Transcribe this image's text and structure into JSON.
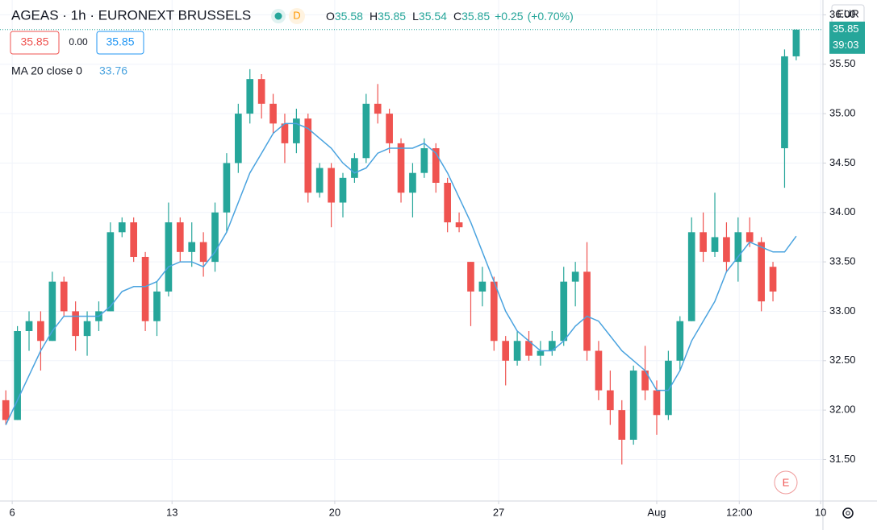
{
  "chart_data": {
    "type": "candlestick",
    "title": "AGEAS · 1h · EURONEXT BRUSSELS",
    "interval_badge": "D",
    "ohlc_labels": [
      "O",
      "H",
      "L",
      "C"
    ],
    "change": "+0.25",
    "change_pct": "(+0.70%)",
    "spread": "0.00",
    "indicator": "MA 20 close 0",
    "currency": "EUR",
    "countdown": "39:03",
    "event_marker": "E",
    "up_color": "#26a69a",
    "down_color": "#ef5350",
    "ma_color": "#4aa3df",
    "ohlc": [
      [
        32.1,
        32.2,
        31.85,
        31.9
      ],
      [
        31.9,
        32.85,
        31.9,
        32.8
      ],
      [
        32.8,
        33.0,
        32.6,
        32.9
      ],
      [
        32.9,
        33.0,
        32.4,
        32.7
      ],
      [
        32.7,
        33.4,
        32.7,
        33.3
      ],
      [
        33.3,
        33.35,
        32.95,
        33.0
      ],
      [
        33.0,
        33.1,
        32.6,
        32.75
      ],
      [
        32.75,
        33.0,
        32.55,
        32.9
      ],
      [
        32.9,
        33.1,
        32.8,
        33.0
      ],
      [
        33.0,
        33.9,
        33.0,
        33.8
      ],
      [
        33.8,
        33.95,
        33.75,
        33.9
      ],
      [
        33.9,
        33.95,
        33.5,
        33.55
      ],
      [
        33.55,
        33.6,
        32.8,
        32.9
      ],
      [
        32.9,
        33.3,
        32.75,
        33.2
      ],
      [
        33.2,
        34.1,
        33.15,
        33.9
      ],
      [
        33.9,
        33.95,
        33.5,
        33.6
      ],
      [
        33.6,
        33.9,
        33.45,
        33.7
      ],
      [
        33.7,
        33.8,
        33.35,
        33.5
      ],
      [
        33.5,
        34.1,
        33.4,
        34.0
      ],
      [
        34.0,
        34.6,
        33.8,
        34.5
      ],
      [
        34.5,
        35.1,
        34.4,
        35.0
      ],
      [
        35.0,
        35.45,
        34.9,
        35.35
      ],
      [
        35.35,
        35.4,
        34.95,
        35.1
      ],
      [
        35.1,
        35.2,
        34.8,
        34.9
      ],
      [
        34.9,
        35.0,
        34.5,
        34.7
      ],
      [
        34.7,
        35.05,
        34.6,
        34.95
      ],
      [
        34.95,
        35.0,
        34.1,
        34.2
      ],
      [
        34.2,
        34.5,
        34.15,
        34.45
      ],
      [
        34.45,
        34.5,
        33.85,
        34.1
      ],
      [
        34.1,
        34.4,
        33.95,
        34.35
      ],
      [
        34.35,
        34.6,
        34.3,
        34.55
      ],
      [
        34.55,
        35.2,
        34.5,
        35.1
      ],
      [
        35.1,
        35.3,
        34.9,
        35.0
      ],
      [
        35.0,
        35.05,
        34.6,
        34.7
      ],
      [
        34.7,
        34.75,
        34.1,
        34.2
      ],
      [
        34.2,
        34.5,
        33.95,
        34.4
      ],
      [
        34.4,
        34.75,
        34.35,
        34.65
      ],
      [
        34.65,
        34.7,
        34.2,
        34.3
      ],
      [
        34.3,
        34.35,
        33.8,
        33.9
      ],
      [
        33.9,
        34.0,
        33.8,
        33.85
      ],
      [
        33.5,
        33.5,
        32.85,
        33.2
      ],
      [
        33.2,
        33.45,
        33.05,
        33.3
      ],
      [
        33.3,
        33.35,
        32.6,
        32.7
      ],
      [
        32.7,
        32.75,
        32.25,
        32.5
      ],
      [
        32.5,
        32.8,
        32.45,
        32.7
      ],
      [
        32.7,
        32.8,
        32.5,
        32.55
      ],
      [
        32.55,
        32.7,
        32.45,
        32.6
      ],
      [
        32.6,
        32.8,
        32.55,
        32.7
      ],
      [
        32.7,
        33.45,
        32.65,
        33.3
      ],
      [
        33.3,
        33.5,
        33.05,
        33.4
      ],
      [
        33.4,
        33.7,
        32.5,
        32.6
      ],
      [
        32.6,
        32.7,
        32.1,
        32.2
      ],
      [
        32.2,
        32.4,
        31.85,
        32.0
      ],
      [
        32.0,
        32.1,
        31.45,
        31.7
      ],
      [
        31.7,
        32.45,
        31.65,
        32.4
      ],
      [
        32.4,
        32.65,
        32.1,
        32.2
      ],
      [
        32.2,
        32.3,
        31.75,
        31.95
      ],
      [
        31.95,
        32.6,
        31.9,
        32.5
      ],
      [
        32.5,
        32.95,
        32.4,
        32.9
      ],
      [
        32.9,
        33.95,
        32.9,
        33.8
      ],
      [
        33.8,
        34.0,
        33.5,
        33.6
      ],
      [
        33.6,
        34.2,
        33.55,
        33.75
      ],
      [
        33.75,
        33.9,
        33.4,
        33.5
      ],
      [
        33.5,
        33.95,
        33.3,
        33.8
      ],
      [
        33.8,
        33.95,
        33.65,
        33.7
      ],
      [
        33.7,
        33.75,
        33.0,
        33.1
      ],
      [
        33.45,
        33.5,
        33.1,
        33.2
      ],
      [
        34.65,
        35.65,
        34.25,
        35.58
      ],
      [
        35.58,
        35.85,
        35.54,
        35.85
      ]
    ],
    "ma": [
      31.85,
      32.1,
      32.35,
      32.6,
      32.8,
      32.95,
      32.95,
      32.95,
      32.95,
      33.05,
      33.2,
      33.25,
      33.25,
      33.3,
      33.45,
      33.5,
      33.5,
      33.45,
      33.6,
      33.8,
      34.1,
      34.4,
      34.6,
      34.8,
      34.9,
      34.9,
      34.85,
      34.75,
      34.65,
      34.5,
      34.4,
      34.45,
      34.6,
      34.65,
      34.65,
      34.65,
      34.7,
      34.6,
      34.4,
      34.15,
      33.9,
      33.6,
      33.3,
      33.0,
      32.8,
      32.7,
      32.6,
      32.6,
      32.7,
      32.85,
      32.95,
      32.9,
      32.75,
      32.6,
      32.5,
      32.4,
      32.2,
      32.2,
      32.4,
      32.7,
      32.9,
      33.1,
      33.4,
      33.55,
      33.7,
      33.65,
      33.6,
      33.6,
      33.76
    ],
    "xlim": [
      -0.5,
      70.3
    ],
    "xticks": [
      {
        "value": 0.55,
        "label": "6"
      },
      {
        "value": 14.3,
        "label": "13"
      },
      {
        "value": 28.3,
        "label": "20"
      },
      {
        "value": 42.4,
        "label": "27"
      },
      {
        "value": 56.0,
        "label": "Aug"
      },
      {
        "value": 63.1,
        "label": "12:00"
      },
      {
        "value": 70.1,
        "label": "10"
      }
    ],
    "ylim": [
      31.08,
      36.15
    ],
    "yticks": [
      {
        "value": 31.5,
        "label": "31.50"
      },
      {
        "value": 32,
        "label": "32.00"
      },
      {
        "value": 32.5,
        "label": "32.50"
      },
      {
        "value": 33,
        "label": "33.00"
      },
      {
        "value": 33.5,
        "label": "33.50"
      },
      {
        "value": 34,
        "label": "34.00"
      },
      {
        "value": 34.5,
        "label": "34.50"
      },
      {
        "value": 35,
        "label": "35.00"
      },
      {
        "value": 35.5,
        "label": "35.50"
      },
      {
        "value": 36,
        "label": "36.00"
      }
    ],
    "grid": true
  }
}
